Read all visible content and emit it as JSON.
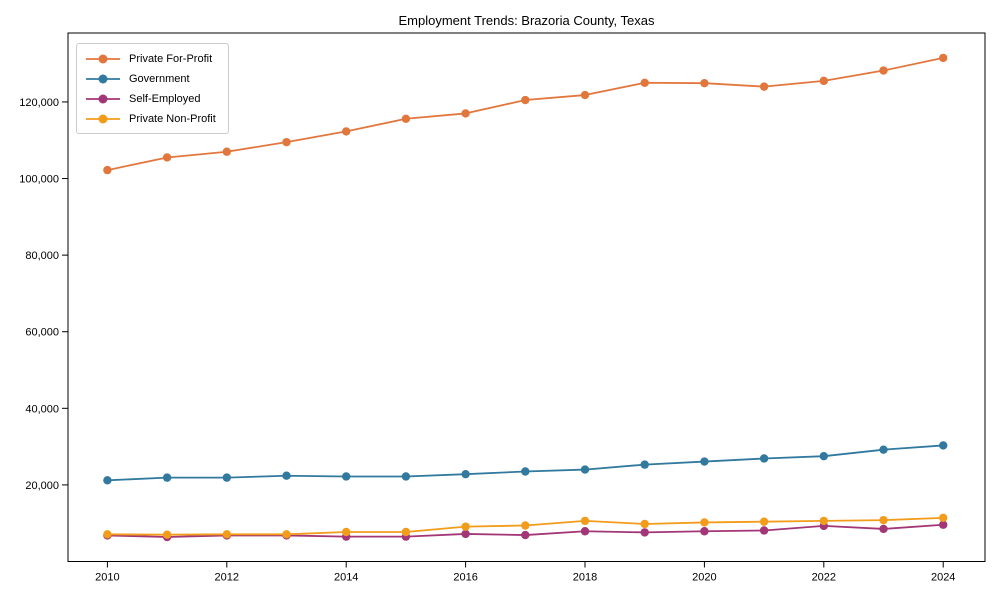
{
  "chart_data": {
    "type": "line",
    "title": "Employment Trends: Brazoria County, Texas",
    "x": [
      2010,
      2011,
      2012,
      2013,
      2014,
      2015,
      2016,
      2017,
      2018,
      2019,
      2020,
      2021,
      2022,
      2023,
      2024
    ],
    "series": [
      {
        "name": "Private For-Profit",
        "color": "#e2773e",
        "values": [
          102200,
          105500,
          107000,
          109500,
          112300,
          115600,
          117000,
          120500,
          121800,
          125000,
          124900,
          124000,
          125500,
          128200,
          131500
        ]
      },
      {
        "name": "Government",
        "color": "#31799e",
        "values": [
          21200,
          21900,
          21900,
          22400,
          22200,
          22200,
          22800,
          23500,
          24000,
          25300,
          26100,
          26900,
          27500,
          29200,
          30300
        ]
      },
      {
        "name": "Self-Employed",
        "color": "#a33677",
        "values": [
          6800,
          6400,
          6800,
          6800,
          6500,
          6500,
          7200,
          6900,
          7900,
          7600,
          7900,
          8100,
          9300,
          8500,
          9600
        ]
      },
      {
        "name": "Private Non-Profit",
        "color": "#f29c1b",
        "values": [
          7100,
          7000,
          7100,
          7100,
          7700,
          7700,
          9100,
          9400,
          10600,
          9800,
          10200,
          10400,
          10600,
          10800,
          11400
        ]
      }
    ],
    "xlim": [
      2009.34,
      2024.7
    ],
    "ylim": [
      0,
      138000
    ],
    "yticks": {
      "values": [
        20000,
        40000,
        60000,
        80000,
        100000,
        120000
      ],
      "labels": [
        "20,000",
        "40,000",
        "60,000",
        "80,000",
        "100,000",
        "120,000"
      ]
    },
    "xticks": {
      "values": [
        2010,
        2012,
        2014,
        2016,
        2018,
        2020,
        2022,
        2024
      ],
      "labels": [
        "2010",
        "2012",
        "2014",
        "2016",
        "2018",
        "2020",
        "2022",
        "2024"
      ]
    },
    "legend_position": "upper-left",
    "grid": false,
    "axis_color": "#000000",
    "text_color": "#000000",
    "background": "#ffffff"
  }
}
